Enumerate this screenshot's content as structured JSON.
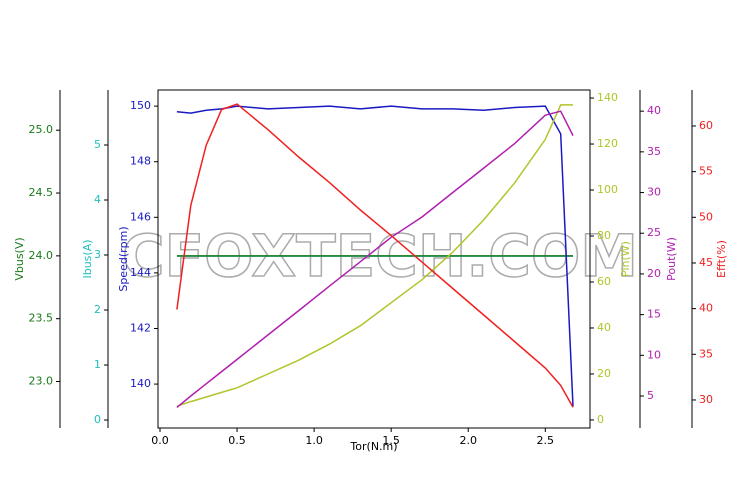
{
  "chart_data": {
    "type": "line",
    "xlabel": "Tor(N.m)",
    "watermark": "CFOXTECH.COM",
    "x": [
      0.11,
      0.2,
      0.3,
      0.4,
      0.5,
      0.7,
      0.9,
      1.1,
      1.3,
      1.5,
      1.7,
      1.9,
      2.1,
      2.3,
      2.5,
      2.6,
      2.68
    ],
    "xlim": [
      -0.0129,
      2.79
    ],
    "xticks": [
      {
        "value": 0,
        "label": "0.0"
      },
      {
        "value": 0.5,
        "label": "0.5"
      },
      {
        "value": 1,
        "label": "1.0"
      },
      {
        "value": 1.5,
        "label": "1.5"
      },
      {
        "value": 2,
        "label": "2.0"
      },
      {
        "value": 2.5,
        "label": "2.5"
      }
    ],
    "axes": [
      {
        "label": "Vbus(V)",
        "color": "#1a7a1a",
        "ylim": [
          22.63,
          25.32
        ],
        "yticks": [
          {
            "value": 23,
            "label": "23.0"
          },
          {
            "value": 23.5,
            "label": "23.5"
          },
          {
            "value": 24,
            "label": "24.0"
          },
          {
            "value": 24.5,
            "label": "24.5"
          },
          {
            "value": 25,
            "label": "25.0"
          }
        ],
        "values": [
          24,
          24,
          24,
          24,
          24,
          24,
          24,
          24,
          24,
          24,
          24,
          24,
          24,
          24,
          24,
          24,
          24
        ]
      },
      {
        "label": "Ibus(A)",
        "color": "#1fbfbf",
        "ylim": [
          -0.145,
          6.0
        ],
        "yticks": [
          0,
          1,
          2,
          3,
          4,
          5
        ],
        "values": [
          2.98,
          2.98,
          2.98,
          2.98,
          2.98,
          2.98,
          2.98,
          2.98,
          2.98,
          2.98,
          2.98,
          2.98,
          2.98,
          2.98,
          2.98,
          2.98,
          2.98
        ]
      },
      {
        "label": "Speed(rpm)",
        "color": "#1a1ac0",
        "ylim": [
          138.42,
          150.58
        ],
        "yticks": [
          140,
          142,
          144,
          146,
          148,
          150
        ],
        "values": [
          149.8,
          149.75,
          149.85,
          149.9,
          150,
          149.9,
          149.95,
          150,
          149.9,
          150,
          149.9,
          149.9,
          149.85,
          149.95,
          150,
          149,
          139.2
        ]
      },
      {
        "label": "Pin(W)",
        "color": "#b3c42a",
        "ylim": [
          -3.5,
          143.5
        ],
        "yticks": [
          0,
          20,
          40,
          60,
          80,
          100,
          120,
          140
        ],
        "values": [
          6,
          8,
          10,
          12,
          14,
          20,
          26,
          33,
          41,
          51,
          61,
          73,
          87,
          103,
          122,
          137,
          137
        ]
      },
      {
        "label": "Pout(W)",
        "color": "#b020b0",
        "ylim": [
          1.07,
          42.6
        ],
        "yticks": [
          5,
          10,
          15,
          20,
          25,
          30,
          35,
          40
        ],
        "values": [
          3.6,
          5,
          6.5,
          8,
          9.5,
          12.5,
          15.5,
          18.5,
          21.5,
          24.5,
          27,
          30,
          33,
          36,
          39.5,
          40,
          37
        ]
      },
      {
        "label": "Efft(%)",
        "color": "#f02020",
        "ylim": [
          26.93,
          63.94
        ],
        "yticks": [
          30,
          35,
          40,
          45,
          50,
          55,
          60
        ],
        "values": [
          39.9,
          51.3,
          57.9,
          61.8,
          62.4,
          59.6,
          56.6,
          53.8,
          50.8,
          48,
          45.1,
          42.2,
          39.3,
          36.4,
          33.5,
          31.6,
          29.2
        ]
      }
    ]
  }
}
